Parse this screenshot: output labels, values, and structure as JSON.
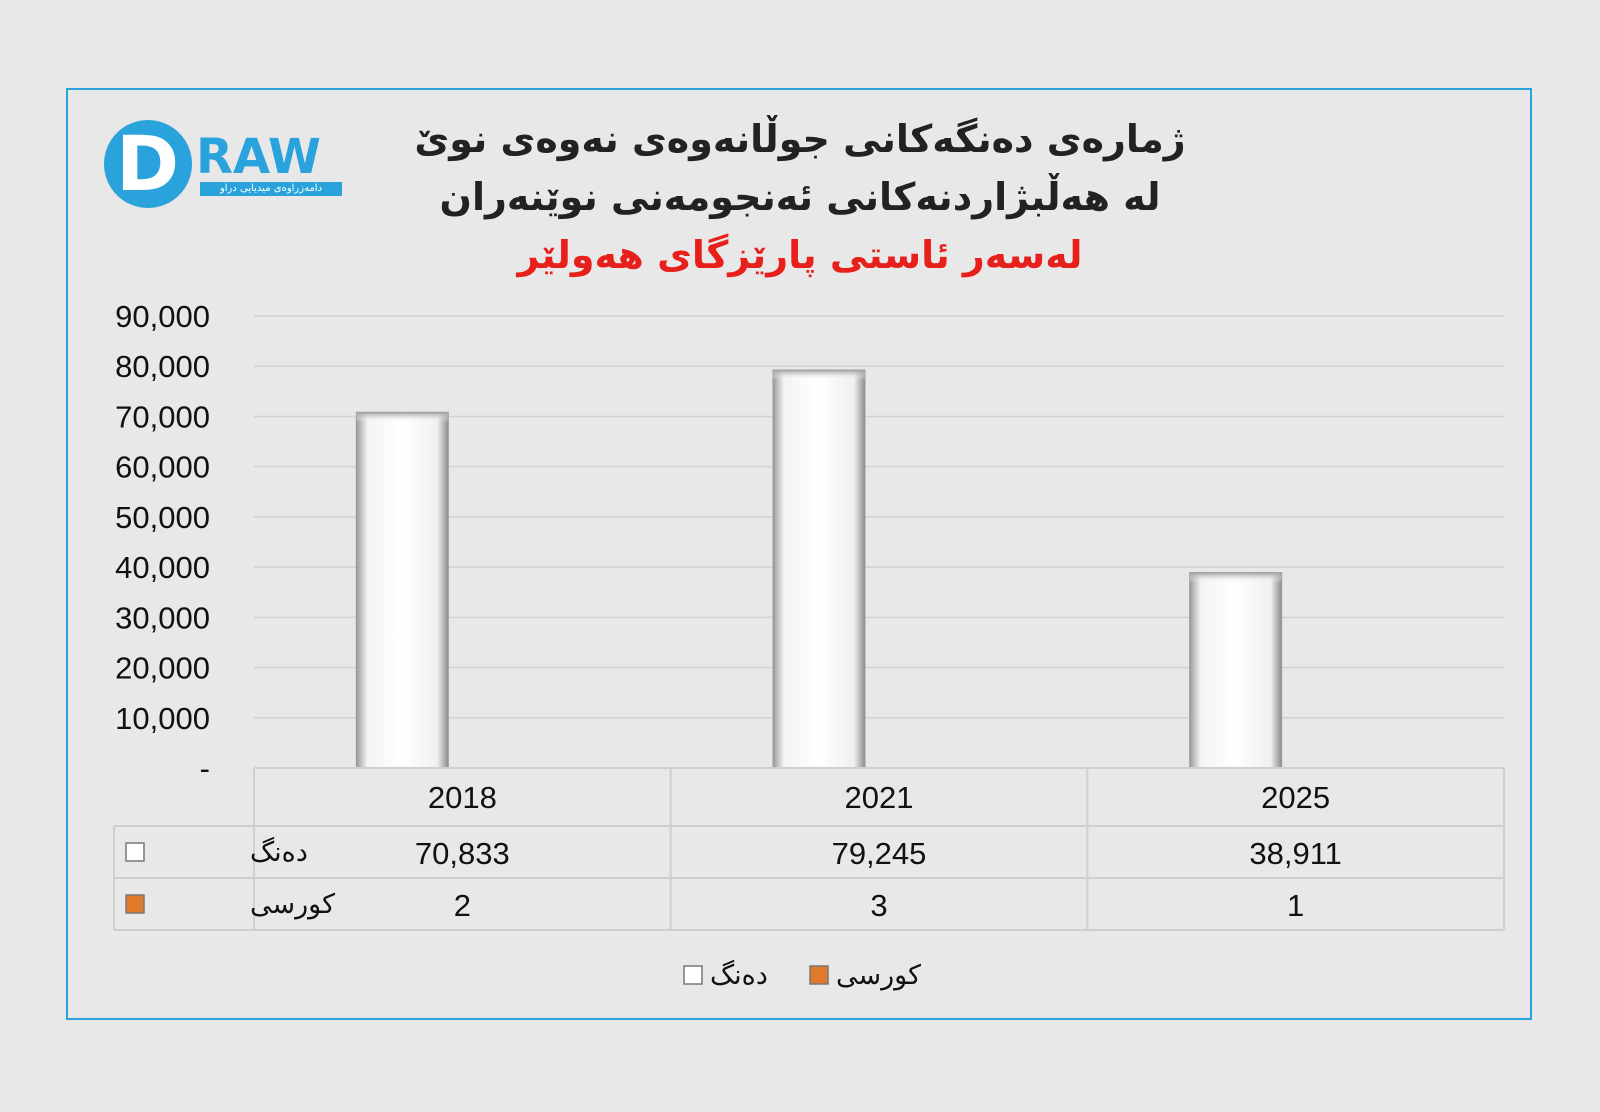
{
  "logo": {
    "letters": "DRAW",
    "tagline": "دامەزراوەی میدیایی دراو"
  },
  "title": {
    "line1": "ژمارەی دەنگەکانی جوڵانەوەی نەوەی نوێ",
    "line2": "لە هەڵبژاردنەکانی ئەنجومەنی نوێنەران",
    "line3": "لەسەر ئاستی پارێزگای هەولێر"
  },
  "colors": {
    "frame": "#2aa3dc",
    "title_highlight": "#e8201b",
    "votes_series": "#ffffff",
    "seats_series": "#e07a2a",
    "background": "#e8e8e8"
  },
  "chart_data": {
    "type": "bar",
    "title": "ژمارەی دەنگەکانی جوڵانەوەی نەوەی نوێ لە هەڵبژاردنەکانی ئەنجومەنی نوێنەران لەسەر ئاستی پارێزگای هەولێر",
    "categories": [
      "2018",
      "2021",
      "2025"
    ],
    "series": [
      {
        "name": "دەنگ",
        "values": [
          70833,
          79245,
          38911
        ],
        "display": [
          "70,833",
          "79,245",
          "38,911"
        ]
      },
      {
        "name": "کورسی",
        "values": [
          2,
          3,
          1
        ],
        "display": [
          "2",
          "3",
          "1"
        ]
      }
    ],
    "yticks": [
      "-",
      "10,000",
      "20,000",
      "30,000",
      "40,000",
      "50,000",
      "60,000",
      "70,000",
      "80,000",
      "90,000"
    ],
    "ylim": [
      0,
      90000
    ],
    "grid": true,
    "data_table": true,
    "legend_position": "bottom"
  }
}
